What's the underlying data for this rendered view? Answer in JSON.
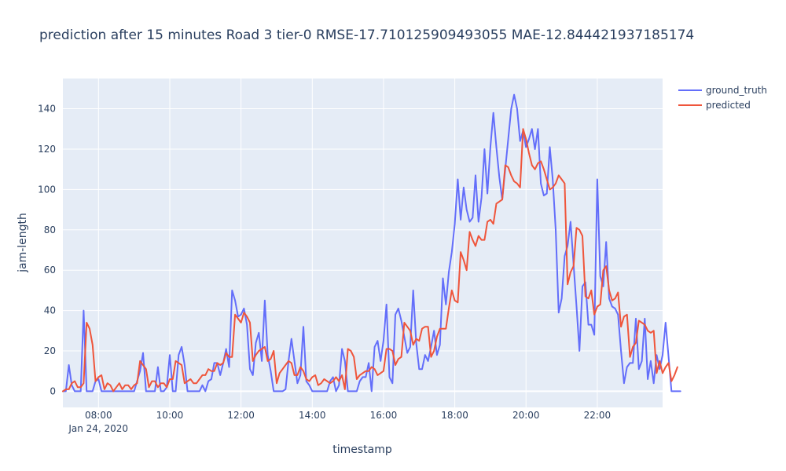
{
  "chart_data": {
    "type": "line",
    "title": "prediction after 15 minutes Road 3 tier-0 RMSE-17.710125909493055  MAE-12.844421937185174",
    "xlabel": "timestamp",
    "ylabel": "jam-length",
    "x_start": "2020-01-24 07:00",
    "x_step_minutes": 5,
    "xlim": [
      "2020-01-24 07:00",
      "2020-01-24 23:50"
    ],
    "ylim": [
      -8,
      155
    ],
    "x_ticks": [
      {
        "label": "08:00",
        "sublabel": "Jan 24, 2020",
        "time": "2020-01-24 08:00"
      },
      {
        "label": "10:00",
        "time": "2020-01-24 10:00"
      },
      {
        "label": "12:00",
        "time": "2020-01-24 12:00"
      },
      {
        "label": "14:00",
        "time": "2020-01-24 14:00"
      },
      {
        "label": "16:00",
        "time": "2020-01-24 16:00"
      },
      {
        "label": "18:00",
        "time": "2020-01-24 18:00"
      },
      {
        "label": "20:00",
        "time": "2020-01-24 20:00"
      },
      {
        "label": "22:00",
        "time": "2020-01-24 22:00"
      }
    ],
    "y_ticks": [
      0,
      20,
      40,
      60,
      80,
      100,
      120,
      140
    ],
    "grid": true,
    "legend_position": "top-right",
    "series": [
      {
        "name": "ground_truth",
        "color": "#636efa",
        "values": [
          0,
          0,
          13,
          3,
          0,
          0,
          0,
          40,
          0,
          0,
          0,
          5,
          6,
          0,
          0,
          0,
          0,
          0,
          0,
          0,
          0,
          0,
          0,
          0,
          0,
          5,
          10,
          19,
          0,
          0,
          0,
          0,
          12,
          0,
          0,
          2,
          18,
          0,
          0,
          18,
          22,
          13,
          0,
          0,
          0,
          0,
          0,
          3,
          0,
          5,
          6,
          14,
          14,
          8,
          14,
          21,
          12,
          50,
          45,
          37,
          38,
          41,
          33,
          11,
          8,
          24,
          29,
          15,
          45,
          18,
          10,
          0,
          0,
          0,
          0,
          1,
          15,
          26,
          15,
          4,
          8,
          32,
          5,
          3,
          0,
          0,
          0,
          0,
          0,
          0,
          5,
          7,
          0,
          3,
          21,
          15,
          0,
          0,
          0,
          0,
          5,
          7,
          7,
          14,
          0,
          22,
          25,
          15,
          25,
          43,
          7,
          4,
          38,
          41,
          35,
          27,
          19,
          22,
          50,
          24,
          11,
          11,
          18,
          15,
          22,
          30,
          18,
          23,
          56,
          43,
          59,
          69,
          83,
          105,
          85,
          101,
          90,
          84,
          86,
          107,
          84,
          96,
          120,
          98,
          121,
          138,
          121,
          106,
          95,
          110,
          125,
          140,
          147,
          140,
          124,
          129,
          121,
          125,
          130,
          120,
          130,
          103,
          97,
          98,
          121,
          105,
          80,
          39,
          46,
          67,
          72,
          84,
          63,
          42,
          20,
          52,
          54,
          33,
          33,
          28,
          105,
          57,
          52,
          74,
          46,
          42,
          41,
          38,
          20,
          4,
          12,
          14,
          14,
          36,
          11,
          15,
          36,
          6,
          15,
          4,
          18,
          11,
          18,
          34,
          17,
          0,
          0,
          0,
          0
        ]
      },
      {
        "name": "predicted",
        "color": "#ef553b",
        "values": [
          0,
          1,
          1,
          4,
          5,
          2,
          2,
          4,
          34,
          31,
          23,
          5,
          7,
          8,
          1,
          4,
          3,
          0,
          2,
          4,
          1,
          3,
          3,
          1,
          3,
          4,
          15,
          13,
          11,
          2,
          5,
          5,
          2,
          4,
          4,
          2,
          6,
          6,
          15,
          14,
          13,
          4,
          5,
          6,
          4,
          4,
          6,
          8,
          8,
          11,
          10,
          10,
          14,
          13,
          14,
          19,
          17,
          17,
          38,
          36,
          34,
          39,
          37,
          34,
          15,
          18,
          20,
          21,
          22,
          15,
          16,
          20,
          4,
          9,
          11,
          13,
          15,
          14,
          8,
          8,
          12,
          10,
          6,
          5,
          7,
          8,
          3,
          4,
          6,
          5,
          4,
          5,
          7,
          5,
          8,
          1,
          21,
          20,
          17,
          6,
          8,
          9,
          10,
          10,
          12,
          11,
          8,
          9,
          10,
          21,
          21,
          20,
          13,
          16,
          17,
          34,
          32,
          30,
          23,
          26,
          25,
          31,
          32,
          32,
          17,
          20,
          27,
          31,
          31,
          31,
          41,
          50,
          45,
          44,
          69,
          65,
          60,
          79,
          75,
          72,
          77,
          75,
          75,
          84,
          85,
          83,
          93,
          94,
          95,
          112,
          111,
          107,
          104,
          103,
          101,
          130,
          125,
          118,
          112,
          110,
          113,
          114,
          110,
          105,
          100,
          101,
          103,
          107,
          105,
          103,
          53,
          59,
          62,
          81,
          80,
          77,
          47,
          46,
          50,
          38,
          42,
          43,
          60,
          62,
          50,
          45,
          46,
          49,
          32,
          37,
          38,
          17,
          22,
          24,
          35,
          34,
          33,
          30,
          29,
          30,
          9,
          15,
          9,
          12,
          14,
          5,
          8,
          12
        ]
      }
    ]
  }
}
